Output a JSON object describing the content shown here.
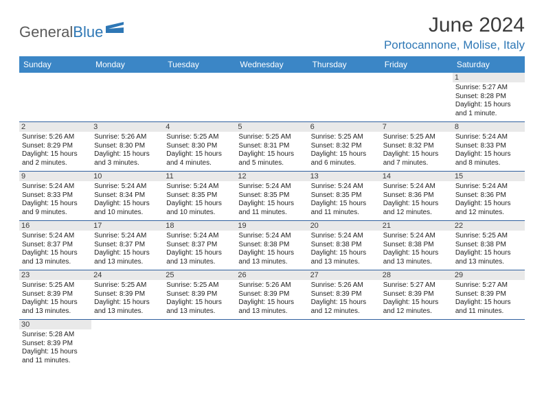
{
  "brand": {
    "part1": "General",
    "part2": "Blue"
  },
  "title": "June 2024",
  "location": "Portocannone, Molise, Italy",
  "colors": {
    "header_bg": "#3b86c6",
    "accent": "#2e77b5",
    "rule": "#2e5f9e",
    "daynum_bg": "#e9e9e9",
    "text": "#222222"
  },
  "weekdays": [
    "Sunday",
    "Monday",
    "Tuesday",
    "Wednesday",
    "Thursday",
    "Friday",
    "Saturday"
  ],
  "weeks": [
    [
      {
        "n": "",
        "sr": "",
        "ss": "",
        "dl": ""
      },
      {
        "n": "",
        "sr": "",
        "ss": "",
        "dl": ""
      },
      {
        "n": "",
        "sr": "",
        "ss": "",
        "dl": ""
      },
      {
        "n": "",
        "sr": "",
        "ss": "",
        "dl": ""
      },
      {
        "n": "",
        "sr": "",
        "ss": "",
        "dl": ""
      },
      {
        "n": "",
        "sr": "",
        "ss": "",
        "dl": ""
      },
      {
        "n": "1",
        "sr": "Sunrise: 5:27 AM",
        "ss": "Sunset: 8:28 PM",
        "dl": "Daylight: 15 hours and 1 minute."
      }
    ],
    [
      {
        "n": "2",
        "sr": "Sunrise: 5:26 AM",
        "ss": "Sunset: 8:29 PM",
        "dl": "Daylight: 15 hours and 2 minutes."
      },
      {
        "n": "3",
        "sr": "Sunrise: 5:26 AM",
        "ss": "Sunset: 8:30 PM",
        "dl": "Daylight: 15 hours and 3 minutes."
      },
      {
        "n": "4",
        "sr": "Sunrise: 5:25 AM",
        "ss": "Sunset: 8:30 PM",
        "dl": "Daylight: 15 hours and 4 minutes."
      },
      {
        "n": "5",
        "sr": "Sunrise: 5:25 AM",
        "ss": "Sunset: 8:31 PM",
        "dl": "Daylight: 15 hours and 5 minutes."
      },
      {
        "n": "6",
        "sr": "Sunrise: 5:25 AM",
        "ss": "Sunset: 8:32 PM",
        "dl": "Daylight: 15 hours and 6 minutes."
      },
      {
        "n": "7",
        "sr": "Sunrise: 5:25 AM",
        "ss": "Sunset: 8:32 PM",
        "dl": "Daylight: 15 hours and 7 minutes."
      },
      {
        "n": "8",
        "sr": "Sunrise: 5:24 AM",
        "ss": "Sunset: 8:33 PM",
        "dl": "Daylight: 15 hours and 8 minutes."
      }
    ],
    [
      {
        "n": "9",
        "sr": "Sunrise: 5:24 AM",
        "ss": "Sunset: 8:33 PM",
        "dl": "Daylight: 15 hours and 9 minutes."
      },
      {
        "n": "10",
        "sr": "Sunrise: 5:24 AM",
        "ss": "Sunset: 8:34 PM",
        "dl": "Daylight: 15 hours and 10 minutes."
      },
      {
        "n": "11",
        "sr": "Sunrise: 5:24 AM",
        "ss": "Sunset: 8:35 PM",
        "dl": "Daylight: 15 hours and 10 minutes."
      },
      {
        "n": "12",
        "sr": "Sunrise: 5:24 AM",
        "ss": "Sunset: 8:35 PM",
        "dl": "Daylight: 15 hours and 11 minutes."
      },
      {
        "n": "13",
        "sr": "Sunrise: 5:24 AM",
        "ss": "Sunset: 8:35 PM",
        "dl": "Daylight: 15 hours and 11 minutes."
      },
      {
        "n": "14",
        "sr": "Sunrise: 5:24 AM",
        "ss": "Sunset: 8:36 PM",
        "dl": "Daylight: 15 hours and 12 minutes."
      },
      {
        "n": "15",
        "sr": "Sunrise: 5:24 AM",
        "ss": "Sunset: 8:36 PM",
        "dl": "Daylight: 15 hours and 12 minutes."
      }
    ],
    [
      {
        "n": "16",
        "sr": "Sunrise: 5:24 AM",
        "ss": "Sunset: 8:37 PM",
        "dl": "Daylight: 15 hours and 13 minutes."
      },
      {
        "n": "17",
        "sr": "Sunrise: 5:24 AM",
        "ss": "Sunset: 8:37 PM",
        "dl": "Daylight: 15 hours and 13 minutes."
      },
      {
        "n": "18",
        "sr": "Sunrise: 5:24 AM",
        "ss": "Sunset: 8:37 PM",
        "dl": "Daylight: 15 hours and 13 minutes."
      },
      {
        "n": "19",
        "sr": "Sunrise: 5:24 AM",
        "ss": "Sunset: 8:38 PM",
        "dl": "Daylight: 15 hours and 13 minutes."
      },
      {
        "n": "20",
        "sr": "Sunrise: 5:24 AM",
        "ss": "Sunset: 8:38 PM",
        "dl": "Daylight: 15 hours and 13 minutes."
      },
      {
        "n": "21",
        "sr": "Sunrise: 5:24 AM",
        "ss": "Sunset: 8:38 PM",
        "dl": "Daylight: 15 hours and 13 minutes."
      },
      {
        "n": "22",
        "sr": "Sunrise: 5:25 AM",
        "ss": "Sunset: 8:38 PM",
        "dl": "Daylight: 15 hours and 13 minutes."
      }
    ],
    [
      {
        "n": "23",
        "sr": "Sunrise: 5:25 AM",
        "ss": "Sunset: 8:39 PM",
        "dl": "Daylight: 15 hours and 13 minutes."
      },
      {
        "n": "24",
        "sr": "Sunrise: 5:25 AM",
        "ss": "Sunset: 8:39 PM",
        "dl": "Daylight: 15 hours and 13 minutes."
      },
      {
        "n": "25",
        "sr": "Sunrise: 5:25 AM",
        "ss": "Sunset: 8:39 PM",
        "dl": "Daylight: 15 hours and 13 minutes."
      },
      {
        "n": "26",
        "sr": "Sunrise: 5:26 AM",
        "ss": "Sunset: 8:39 PM",
        "dl": "Daylight: 15 hours and 13 minutes."
      },
      {
        "n": "27",
        "sr": "Sunrise: 5:26 AM",
        "ss": "Sunset: 8:39 PM",
        "dl": "Daylight: 15 hours and 12 minutes."
      },
      {
        "n": "28",
        "sr": "Sunrise: 5:27 AM",
        "ss": "Sunset: 8:39 PM",
        "dl": "Daylight: 15 hours and 12 minutes."
      },
      {
        "n": "29",
        "sr": "Sunrise: 5:27 AM",
        "ss": "Sunset: 8:39 PM",
        "dl": "Daylight: 15 hours and 11 minutes."
      }
    ],
    [
      {
        "n": "30",
        "sr": "Sunrise: 5:28 AM",
        "ss": "Sunset: 8:39 PM",
        "dl": "Daylight: 15 hours and 11 minutes."
      },
      {
        "n": "",
        "sr": "",
        "ss": "",
        "dl": ""
      },
      {
        "n": "",
        "sr": "",
        "ss": "",
        "dl": ""
      },
      {
        "n": "",
        "sr": "",
        "ss": "",
        "dl": ""
      },
      {
        "n": "",
        "sr": "",
        "ss": "",
        "dl": ""
      },
      {
        "n": "",
        "sr": "",
        "ss": "",
        "dl": ""
      },
      {
        "n": "",
        "sr": "",
        "ss": "",
        "dl": ""
      }
    ]
  ]
}
